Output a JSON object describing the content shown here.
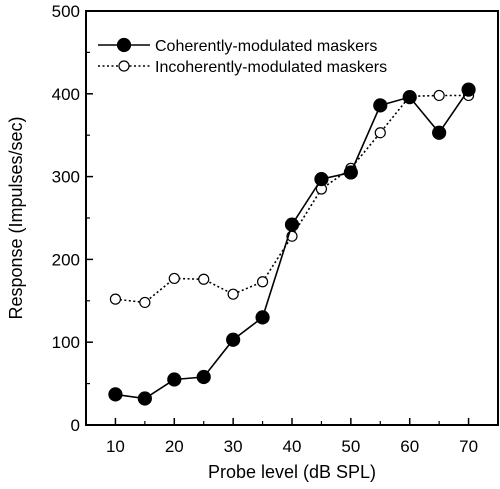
{
  "chart_data": {
    "type": "line",
    "title": "",
    "xlabel": "Probe level (dB SPL)",
    "ylabel": "Response (Impulses/sec)",
    "xlim": [
      5,
      75
    ],
    "ylim": [
      0,
      500
    ],
    "xticks": [
      10,
      20,
      30,
      40,
      50,
      60,
      70
    ],
    "yticks": [
      0,
      100,
      200,
      300,
      400,
      500
    ],
    "legend_position": "top-left",
    "grid": false,
    "series": [
      {
        "name": "Coherently-modulated maskers",
        "style": "solid",
        "marker": "filled-circle",
        "x": [
          10,
          15,
          20,
          25,
          30,
          35,
          40,
          45,
          50,
          55,
          60,
          65,
          70
        ],
        "y": [
          37,
          32,
          55,
          58,
          103,
          130,
          242,
          297,
          305,
          386,
          396,
          353,
          405
        ]
      },
      {
        "name": "Incoherently-modulated maskers",
        "style": "dotted",
        "marker": "open-circle",
        "x": [
          10,
          15,
          20,
          25,
          30,
          35,
          40,
          45,
          50,
          55,
          60,
          65,
          70
        ],
        "y": [
          152,
          148,
          177,
          176,
          158,
          173,
          228,
          285,
          310,
          353,
          397,
          398,
          398
        ]
      }
    ]
  }
}
